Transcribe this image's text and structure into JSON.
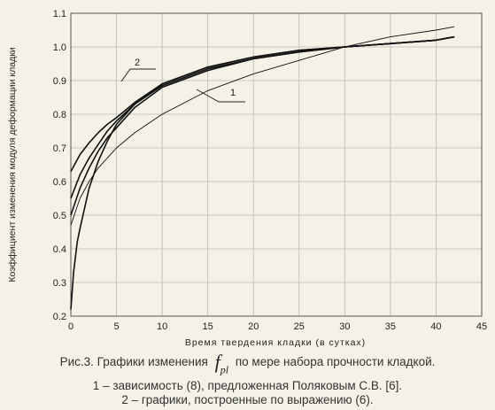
{
  "chart_data": {
    "type": "line",
    "xlabel": "Время твердения кладки (в сутках)",
    "ylabel": "Коэффициент изменения модуля деформации кладки",
    "xlim": [
      0,
      45
    ],
    "ylim": [
      0.2,
      1.1
    ],
    "x_ticks": [
      "0",
      "5",
      "10",
      "15",
      "20",
      "25",
      "30",
      "35",
      "40",
      "45"
    ],
    "y_ticks": [
      "0.2",
      "0.3",
      "0.4",
      "0.5",
      "0.6",
      "0.7",
      "0.8",
      "0.9",
      "1.0",
      "1.1"
    ],
    "grid": true,
    "annotations": [
      "1",
      "2"
    ],
    "series": [
      {
        "name": "1",
        "x": [
          0,
          1,
          2,
          3,
          4,
          5,
          7,
          10,
          15,
          20,
          25,
          30,
          35,
          40,
          42
        ],
        "y": [
          0.47,
          0.55,
          0.6,
          0.64,
          0.67,
          0.7,
          0.745,
          0.8,
          0.87,
          0.92,
          0.96,
          1.0,
          1.03,
          1.05,
          1.06
        ]
      },
      {
        "name": "2",
        "x": [
          0,
          0.3,
          0.7,
          1,
          2,
          3,
          4,
          5,
          7,
          10,
          15,
          20,
          25,
          30,
          35,
          40,
          42
        ],
        "y": [
          0.22,
          0.33,
          0.42,
          0.46,
          0.58,
          0.66,
          0.72,
          0.77,
          0.83,
          0.89,
          0.94,
          0.97,
          0.99,
          1.0,
          1.01,
          1.02,
          1.03
        ]
      },
      {
        "name": "2",
        "x": [
          0,
          1,
          2,
          3,
          4,
          5,
          7,
          10,
          15,
          20,
          25,
          30,
          35,
          40,
          42
        ],
        "y": [
          0.5,
          0.58,
          0.64,
          0.69,
          0.73,
          0.76,
          0.82,
          0.88,
          0.93,
          0.965,
          0.985,
          1.0,
          1.01,
          1.02,
          1.03
        ]
      },
      {
        "name": "2",
        "x": [
          0,
          1,
          2,
          3,
          4,
          5,
          7,
          10,
          15,
          20,
          25,
          30,
          35,
          40,
          42
        ],
        "y": [
          0.55,
          0.62,
          0.67,
          0.71,
          0.75,
          0.78,
          0.83,
          0.885,
          0.935,
          0.965,
          0.985,
          1.0,
          1.01,
          1.02,
          1.03
        ]
      },
      {
        "name": "2",
        "x": [
          0,
          1,
          2,
          3,
          4,
          5,
          7,
          10,
          15,
          20,
          25,
          30,
          35,
          40,
          42
        ],
        "y": [
          0.63,
          0.68,
          0.715,
          0.745,
          0.77,
          0.79,
          0.835,
          0.89,
          0.94,
          0.97,
          0.99,
          1.0,
          1.01,
          1.02,
          1.03
        ]
      }
    ]
  },
  "caption": {
    "prefix": "Рис.3. Графики изменения",
    "symbol": "f",
    "symbol_sub": "pl",
    "suffix": "по мере набора прочности кладкой.",
    "line2": "1 – зависимость (8), предложенная Поляковым С.В. [6].",
    "line3": "2 – графики, построенные по выражению (6)."
  }
}
